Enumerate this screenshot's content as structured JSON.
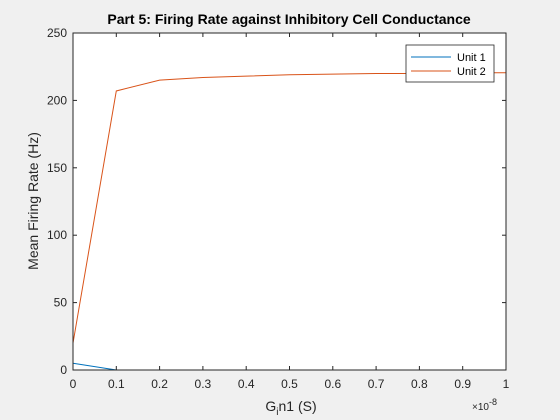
{
  "chart_data": {
    "type": "line",
    "title": "Part 5: Firing Rate against Inhibitory Cell Conductance",
    "xlabel": "G_in1 (S)",
    "ylabel": "Mean Firing Rate (Hz)",
    "x_multiplier_label": "×10",
    "x_multiplier_exponent": "-8",
    "xlim": [
      0,
      1
    ],
    "ylim": [
      0,
      250
    ],
    "xticks": [
      "0",
      "0.1",
      "0.2",
      "0.3",
      "0.4",
      "0.5",
      "0.6",
      "0.7",
      "0.8",
      "0.9",
      "1"
    ],
    "yticks": [
      "0",
      "50",
      "100",
      "150",
      "200",
      "250"
    ],
    "x": [
      0,
      0.1,
      0.2,
      0.3,
      0.4,
      0.5,
      0.6,
      0.7,
      0.8,
      0.9,
      1.0
    ],
    "series": [
      {
        "name": "Unit 1",
        "color": "#0072BD",
        "values": [
          5,
          0,
          0,
          0,
          0,
          0,
          0,
          0,
          0,
          0,
          0
        ]
      },
      {
        "name": "Unit 2",
        "color": "#D95319",
        "values": [
          20,
          207,
          215,
          217,
          218,
          219,
          219.5,
          220,
          220,
          220.5,
          220.5
        ]
      }
    ],
    "legend_position": "top-right",
    "grid": false
  }
}
